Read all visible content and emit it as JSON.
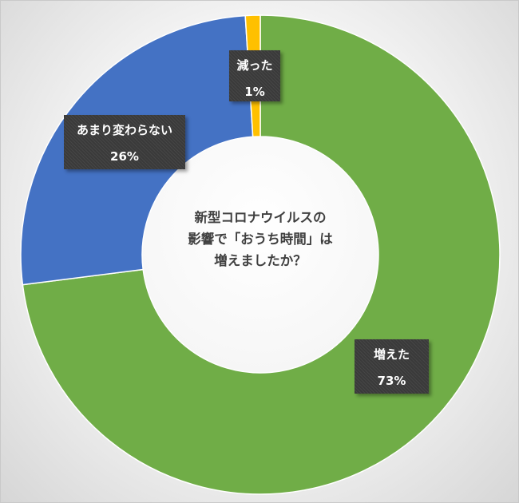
{
  "chart_data": {
    "type": "pie",
    "donut": true,
    "title": "新型コロナウイルスの\n影響で「おうち時間」は\n増えましたか？",
    "title_lines": [
      "新型コロナウイルスの",
      "影響で「おうち時間」は",
      "増えましたか？"
    ],
    "start_angle_deg": 0,
    "direction": "clockwise",
    "legend": "none",
    "slices": [
      {
        "label": "増えた",
        "value": 73,
        "value_label": "73%",
        "color": "#70ad47"
      },
      {
        "label": "あまり変わらない",
        "value": 26,
        "value_label": "26%",
        "color": "#4472c4"
      },
      {
        "label": "減った",
        "value": 1,
        "value_label": "1%",
        "color": "#ffc000"
      }
    ]
  }
}
